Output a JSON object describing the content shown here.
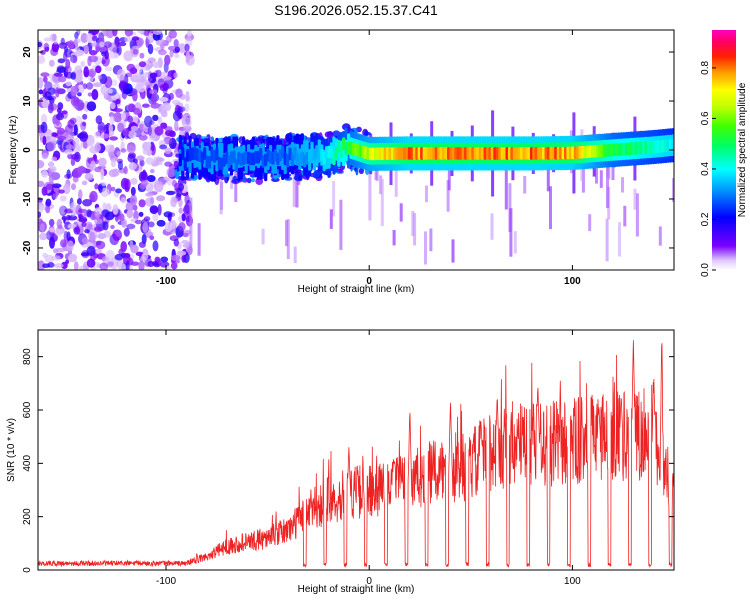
{
  "title": "S196.2026.052.15.37.C41",
  "chart_data": [
    {
      "type": "heatmap",
      "name": "spectrogram",
      "xlabel": "Height of straight line (km)",
      "ylabel": "Frequency (Hz)",
      "xlim": [
        -163,
        150
      ],
      "ylim": [
        -24.5,
        24.5
      ],
      "xticks": [
        -100,
        0,
        100
      ],
      "yticks": [
        -20,
        -10,
        0,
        10,
        20
      ],
      "colorbar": {
        "label": "Normalized spectral amplitude",
        "range": [
          0.0,
          0.95
        ],
        "ticks": [
          0.0,
          0.2,
          0.4,
          0.6,
          0.8
        ],
        "tick_labels": [
          "0.0",
          "0.2",
          "0.4",
          "0.6",
          "0.8"
        ],
        "colors": [
          "#ffffff",
          "#7a00ff",
          "#0000ff",
          "#00ffff",
          "#00ff00",
          "#ffff00",
          "#ff7f00",
          "#ff0000",
          "#ff00ff"
        ]
      },
      "ridge": {
        "description": "narrowband signal near 0 Hz",
        "x": [
          -93,
          -80,
          -60,
          -40,
          -20,
          -10,
          0,
          20,
          40,
          60,
          80,
          100,
          120,
          140,
          150
        ],
        "freq": [
          -1.5,
          -1.8,
          -2.0,
          -1.5,
          -1.0,
          0.5,
          -0.8,
          -0.7,
          -0.7,
          -0.7,
          -0.7,
          -0.6,
          0.0,
          0.6,
          1.0
        ],
        "amplitude": [
          0.25,
          0.3,
          0.3,
          0.3,
          0.45,
          0.6,
          0.75,
          0.9,
          0.9,
          0.9,
          0.9,
          0.88,
          0.6,
          0.5,
          0.45
        ]
      }
    },
    {
      "type": "line",
      "name": "snr",
      "xlabel": "Height of straight line (km)",
      "ylabel": "SNR (10 * v/v)",
      "xlim": [
        -163,
        150
      ],
      "ylim": [
        0,
        900
      ],
      "xticks": [
        -100,
        0,
        100
      ],
      "yticks": [
        0,
        200,
        400,
        600,
        800
      ],
      "color": "#ee2222",
      "envelope": {
        "x": [
          -163,
          -90,
          -80,
          -70,
          -50,
          -40,
          -30,
          -20,
          -10,
          0,
          10,
          20,
          30,
          40,
          50,
          60,
          70,
          80,
          90,
          100,
          110,
          120,
          130,
          140,
          150
        ],
        "snr": [
          25,
          25,
          50,
          90,
          120,
          150,
          220,
          260,
          290,
          300,
          310,
          330,
          360,
          380,
          390,
          450,
          470,
          470,
          470,
          480,
          490,
          490,
          510,
          470,
          300
        ]
      },
      "peaks": {
        "x": [
          -10,
          12,
          20,
          40,
          55,
          63,
          68,
          83,
          113,
          124,
          130,
          140,
          144
        ],
        "snr": [
          460,
          420,
          610,
          640,
          560,
          660,
          720,
          700,
          620,
          660,
          880,
          760,
          900
        ]
      }
    }
  ]
}
